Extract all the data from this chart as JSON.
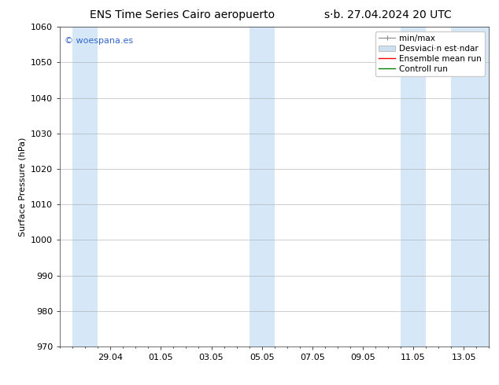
{
  "title_left": "ENS Time Series Cairo aeropuerto",
  "title_right": "s·b. 27.04.2024 20 UTC",
  "ylabel": "Surface Pressure (hPa)",
  "ylim": [
    970,
    1060
  ],
  "yticks": [
    970,
    980,
    990,
    1000,
    1010,
    1020,
    1030,
    1040,
    1050,
    1060
  ],
  "xtick_labels": [
    "29.04",
    "01.05",
    "03.05",
    "05.05",
    "07.05",
    "09.05",
    "11.05",
    "13.05"
  ],
  "xtick_positions": [
    2,
    4,
    6,
    8,
    10,
    12,
    14,
    16
  ],
  "x_min": 0,
  "x_max": 17,
  "shaded_ranges": [
    [
      0.5,
      1.5
    ],
    [
      7.5,
      8.5
    ],
    [
      13.5,
      14.5
    ],
    [
      15.5,
      17.0
    ]
  ],
  "band_color": "#d6e8f7",
  "watermark": "© woespana.es",
  "watermark_color": "#3366cc",
  "legend_labels": [
    "min/max",
    "Desviaci·n est·ndar",
    "Ensemble mean run",
    "Controll run"
  ],
  "legend_colors": [
    "#aaaaaa",
    "#cce0f0",
    "red",
    "green"
  ],
  "bg_color": "#ffffff",
  "plot_bg_color": "#ffffff",
  "grid_color": "#aaaaaa",
  "spine_color": "#333333",
  "font_size_title": 10,
  "font_size_axis": 8,
  "font_size_legend": 7.5,
  "font_size_watermark": 8,
  "font_size_ytick": 8
}
